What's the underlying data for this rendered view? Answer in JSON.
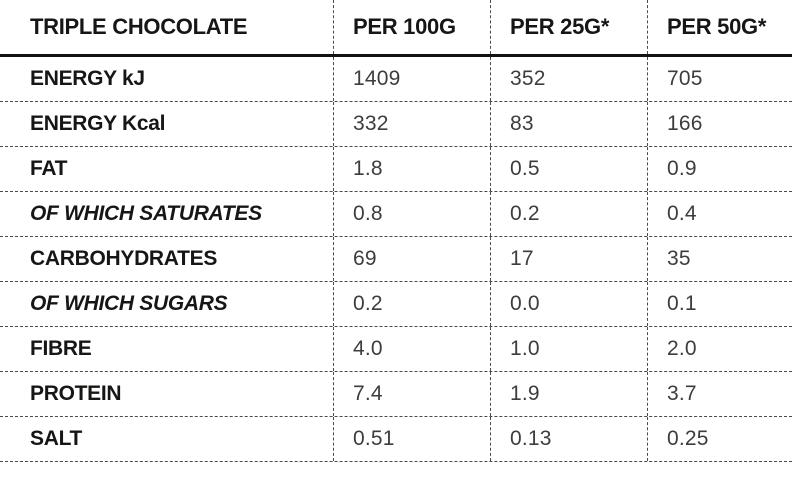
{
  "colors": {
    "background": "#ffffff",
    "label_text": "#161615",
    "value_text": "#3d3d3d",
    "grid_line": "#4a4a4a",
    "header_rule": "#121212"
  },
  "table": {
    "title": "TRIPLE CHOCOLATE",
    "columns": [
      "PER 100G",
      "PER 25G*",
      "PER 50G*"
    ],
    "rows": [
      {
        "label": "ENERGY kJ",
        "italic": false,
        "values": [
          "1409",
          "352",
          "705"
        ]
      },
      {
        "label": "ENERGY Kcal",
        "italic": false,
        "values": [
          "332",
          "83",
          "166"
        ]
      },
      {
        "label": "FAT",
        "italic": false,
        "values": [
          "1.8",
          "0.5",
          "0.9"
        ]
      },
      {
        "label": "OF WHICH SATURATES",
        "italic": true,
        "values": [
          "0.8",
          "0.2",
          "0.4"
        ]
      },
      {
        "label": "CARBOHYDRATES",
        "italic": false,
        "values": [
          "69",
          "17",
          "35"
        ]
      },
      {
        "label": "OF WHICH SUGARS",
        "italic": true,
        "values": [
          "0.2",
          "0.0",
          "0.1"
        ]
      },
      {
        "label": "FIBRE",
        "italic": false,
        "values": [
          "4.0",
          "1.0",
          "2.0"
        ]
      },
      {
        "label": "PROTEIN",
        "italic": false,
        "values": [
          "7.4",
          "1.9",
          "3.7"
        ]
      },
      {
        "label": "SALT",
        "italic": false,
        "values": [
          "0.51",
          "0.13",
          "0.25"
        ]
      }
    ]
  },
  "chart_data": {
    "type": "table",
    "title": "TRIPLE CHOCOLATE",
    "columns": [
      "TRIPLE CHOCOLATE",
      "PER 100G",
      "PER 25G*",
      "PER 50G*"
    ],
    "rows": [
      [
        "ENERGY kJ",
        "1409",
        "352",
        "705"
      ],
      [
        "ENERGY Kcal",
        "332",
        "83",
        "166"
      ],
      [
        "FAT",
        "1.8",
        "0.5",
        "0.9"
      ],
      [
        "OF WHICH SATURATES",
        "0.8",
        "0.2",
        "0.4"
      ],
      [
        "CARBOHYDRATES",
        "69",
        "17",
        "35"
      ],
      [
        "OF WHICH SUGARS",
        "0.2",
        "0.0",
        "0.1"
      ],
      [
        "FIBRE",
        "4.0",
        "1.0",
        "2.0"
      ],
      [
        "PROTEIN",
        "7.4",
        "1.9",
        "3.7"
      ],
      [
        "SALT",
        "0.51",
        "0.13",
        "0.25"
      ]
    ],
    "layout": {
      "grid": "dashed",
      "header_rule": "thick-solid",
      "value_alignment": "left"
    }
  }
}
